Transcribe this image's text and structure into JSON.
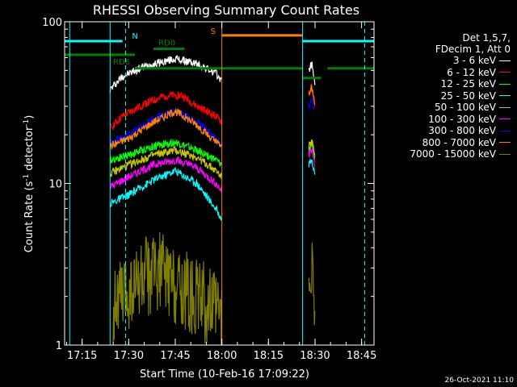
{
  "chart_data": {
    "type": "line",
    "title": "RHESSI Observing Summary Count Rates",
    "xlabel": "Start Time (10-Feb-16 17:09:22)",
    "ylabel_prefix": "Count Rate (s",
    "ylabel_exp1": "-1",
    "ylabel_mid": " detector",
    "ylabel_exp2": "-1",
    "ylabel_suffix": ")",
    "y_scale": "log",
    "ylim": [
      1,
      100
    ],
    "xlim": [
      "17:09:22",
      "18:49:00"
    ],
    "x_ticks": [
      "17:15",
      "17:30",
      "17:45",
      "18:00",
      "18:15",
      "18:30",
      "18:45"
    ],
    "y_ticks": [
      "1",
      "10",
      "100"
    ],
    "legend_header": [
      "Det 1,5,7,",
      "FDecim 1, Att 0"
    ],
    "legend_position": "right",
    "timestamp": "26-Oct-2021 11:10",
    "series": [
      {
        "name": "3 - 6 keV",
        "color": "#ffffff",
        "segments": [
          {
            "t": [
              "17:24",
              "17:28",
              "17:35",
              "17:45",
              "17:52",
              "17:58",
              "18:00"
            ],
            "v": [
              38,
              46,
              53,
              59,
              55,
              48,
              43
            ]
          },
          {
            "t": [
              "18:28",
              "18:29",
              "18:30"
            ],
            "v": [
              50,
              56,
              40
            ]
          }
        ]
      },
      {
        "name": "6 - 12 keV",
        "color": "#ff0000",
        "segments": [
          {
            "t": [
              "17:24",
              "17:28",
              "17:35",
              "17:42",
              "17:47",
              "17:52",
              "17:58",
              "18:00"
            ],
            "v": [
              22,
              26,
              31,
              35,
              35,
              30,
              26,
              24
            ]
          },
          {
            "t": [
              "18:28",
              "18:29",
              "18:30"
            ],
            "v": [
              36,
              40,
              30
            ]
          }
        ]
      },
      {
        "name": "12 - 25 keV",
        "color": "#00ff00",
        "segments": [
          {
            "t": [
              "17:24",
              "17:30",
              "17:38",
              "17:45",
              "17:52",
              "17:58",
              "18:00"
            ],
            "v": [
              14,
              15,
              17,
              18,
              16,
              14,
              13
            ]
          },
          {
            "t": [
              "18:28",
              "18:29",
              "18:30"
            ],
            "v": [
              16,
              18,
              14
            ]
          }
        ]
      },
      {
        "name": "25 - 50 keV",
        "color": "#00ffff",
        "segments": [
          {
            "t": [
              "17:24",
              "17:30",
              "17:38",
              "17:45",
              "17:52",
              "17:58",
              "18:00"
            ],
            "v": [
              7.5,
              8.5,
              10.5,
              12,
              10,
              7,
              6
            ]
          },
          {
            "t": [
              "18:28",
              "18:29",
              "18:30"
            ],
            "v": [
              13,
              14,
              11
            ]
          }
        ]
      },
      {
        "name": "50 - 100 keV",
        "color": "#c8c800",
        "segments": [
          {
            "t": [
              "17:24",
              "17:30",
              "17:38",
              "17:45",
              "17:52",
              "17:58",
              "18:00"
            ],
            "v": [
              11.5,
              13,
              15,
              16,
              14.5,
              12,
              11
            ]
          },
          {
            "t": [
              "18:28",
              "18:29",
              "18:30"
            ],
            "v": [
              17,
              18,
              15
            ]
          }
        ]
      },
      {
        "name": "100 - 300 keV",
        "color": "#ff00ff",
        "segments": [
          {
            "t": [
              "17:24",
              "17:30",
              "17:38",
              "17:45",
              "17:52",
              "17:58",
              "18:00"
            ],
            "v": [
              9.5,
              11,
              13,
              14,
              12.5,
              10,
              9
            ]
          },
          {
            "t": [
              "18:28",
              "18:29",
              "18:30"
            ],
            "v": [
              15,
              16,
              13
            ]
          }
        ]
      },
      {
        "name": "300 - 800 keV",
        "color": "#0000ff",
        "segments": [
          {
            "t": [
              "17:24",
              "17:30",
              "17:38",
              "17:45",
              "17:52",
              "17:58",
              "18:00"
            ],
            "v": [
              18,
              20,
              25,
              28,
              24,
              19,
              17
            ]
          },
          {
            "t": [
              "18:28",
              "18:29",
              "18:30"
            ],
            "v": [
              30,
              33,
              28
            ]
          }
        ]
      },
      {
        "name": "800 - 7000 keV",
        "color": "#ff8000",
        "segments": [
          {
            "t": [
              "17:24",
              "17:30",
              "17:38",
              "17:45",
              "17:52",
              "17:58",
              "18:00"
            ],
            "v": [
              17,
              19,
              24,
              28,
              23,
              18,
              17
            ]
          },
          {
            "t": [
              "18:28",
              "18:29",
              "18:30"
            ],
            "v": [
              36,
              39,
              30
            ]
          }
        ]
      },
      {
        "name": "7000 - 15000 keV",
        "color": "#808000",
        "segments": [
          {
            "t": [
              "17:25",
              "17:30",
              "17:35",
              "17:40",
              "17:45",
              "17:50",
              "17:55",
              "18:00"
            ],
            "v": [
              1.8,
              2.1,
              2.6,
              2.9,
              2.4,
              2.1,
              1.8,
              1.5
            ]
          },
          {
            "t": [
              "18:28",
              "18:29",
              "18:30"
            ],
            "v": [
              2.5,
              3.5,
              2.0
            ]
          }
        ]
      }
    ],
    "flags": [
      {
        "label": "N",
        "color": "#00ffff",
        "row": 0.8,
        "intervals": [
          [
            "17:09:22",
            "17:28"
          ],
          [
            "18:26",
            "18:49"
          ]
        ]
      },
      {
        "label": "S",
        "color": "#ff8000",
        "row": 0.86,
        "intervals": [
          [
            "18:00",
            "18:26"
          ]
        ]
      },
      {
        "label": "RD0",
        "color": "#008000",
        "row": 0.72,
        "intervals": [
          [
            "17:38",
            "17:48"
          ]
        ]
      },
      {
        "label": "RD6",
        "color": "#008000",
        "row": 0.66,
        "intervals": [
          [
            "17:09:22",
            "17:32"
          ]
        ]
      },
      {
        "label": "",
        "color": "#008000",
        "row": 0.52,
        "intervals": [
          [
            "17:32",
            "18:26"
          ],
          [
            "18:34",
            "18:49"
          ]
        ]
      },
      {
        "label": "",
        "color": "#008000",
        "row": 0.42,
        "intervals": [
          [
            "18:26",
            "18:32"
          ]
        ]
      }
    ],
    "vlines_solid": [
      {
        "time": "17:11",
        "color": "#00ffff"
      },
      {
        "time": "17:24",
        "color": "#00ffff"
      },
      {
        "time": "18:00",
        "color": "#ff8000"
      },
      {
        "time": "18:26",
        "color": "#00ffff"
      }
    ],
    "vlines_dashed": [
      {
        "time": "17:29",
        "color": "#00ffff"
      },
      {
        "time": "18:46",
        "color": "#00ffff"
      }
    ]
  }
}
